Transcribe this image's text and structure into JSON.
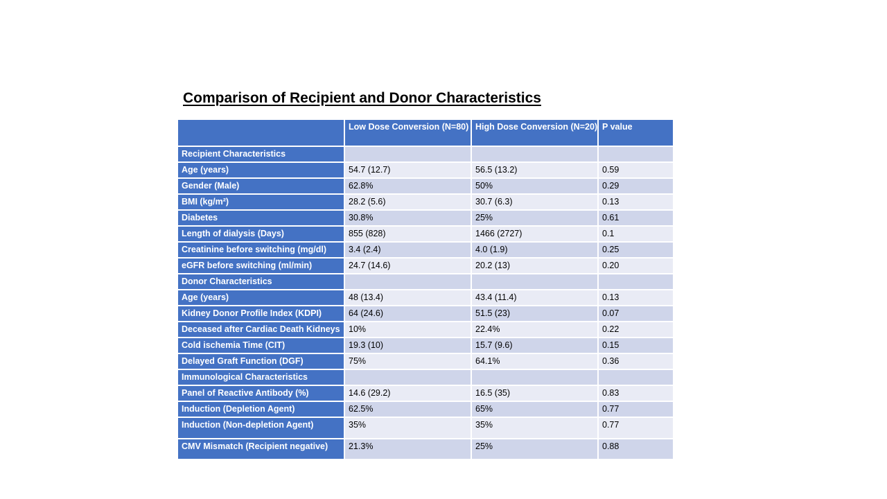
{
  "slide": {
    "title": "Comparison of Recipient and Donor Characteristics"
  },
  "table": {
    "headers": [
      "",
      "Low Dose Conversion (N=80)",
      "High Dose Conversion (N=20)",
      "P value"
    ],
    "rows": [
      [
        "Recipient Characteristics",
        "",
        "",
        ""
      ],
      [
        "Age  (years)",
        "54.7 (12.7)",
        "56.5 (13.2)",
        "0.59"
      ],
      [
        "Gender (Male)",
        "62.8%",
        "50%",
        "0.29"
      ],
      [
        "BMI (kg/m²)",
        "28.2 (5.6)",
        "30.7 (6.3)",
        "0.13"
      ],
      [
        "Diabetes",
        "30.8%",
        "25%",
        "0.61"
      ],
      [
        "Length of dialysis (Days)",
        "855  (828)",
        "1466  (2727)",
        "0.1"
      ],
      [
        "Creatinine before switching (mg/dl)",
        "3.4 (2.4)",
        "4.0 (1.9)",
        "0.25"
      ],
      [
        "eGFR before switching (ml/min)",
        "24.7 (14.6)",
        "20.2 (13)",
        "0.20"
      ],
      [
        "Donor Characteristics",
        "",
        "",
        ""
      ],
      [
        "Age (years)",
        "48 (13.4)",
        "43.4 (11.4)",
        "0.13"
      ],
      [
        "Kidney Donor Profile Index (KDPI)",
        "64 (24.6)",
        "51.5 (23)",
        "0.07"
      ],
      [
        "Deceased after Cardiac Death Kidneys",
        "10%",
        "22.4%",
        "0.22"
      ],
      [
        "Cold ischemia Time (CIT)",
        "19.3 (10)",
        "15.7 (9.6)",
        "0.15"
      ],
      [
        "Delayed Graft Function (DGF)",
        "75%",
        "64.1%",
        "0.36"
      ],
      [
        "Immunological Characteristics",
        "",
        "",
        ""
      ],
      [
        "Panel of Reactive Antibody (%)",
        "14.6 (29.2)",
        "16.5 (35)",
        "0.83"
      ],
      [
        "Induction (Depletion Agent)",
        "62.5%",
        "65%",
        "0.77"
      ],
      [
        "Induction (Non-depletion Agent)",
        "35%",
        "35%",
        "0.77"
      ],
      [
        "CMV Mismatch (Recipient negative)",
        "21.3%",
        "25%",
        "0.88"
      ]
    ]
  },
  "colors": {
    "header_blue": "#4472c4",
    "band_dark": "#cfd5ea",
    "band_light": "#e9ebf5"
  }
}
